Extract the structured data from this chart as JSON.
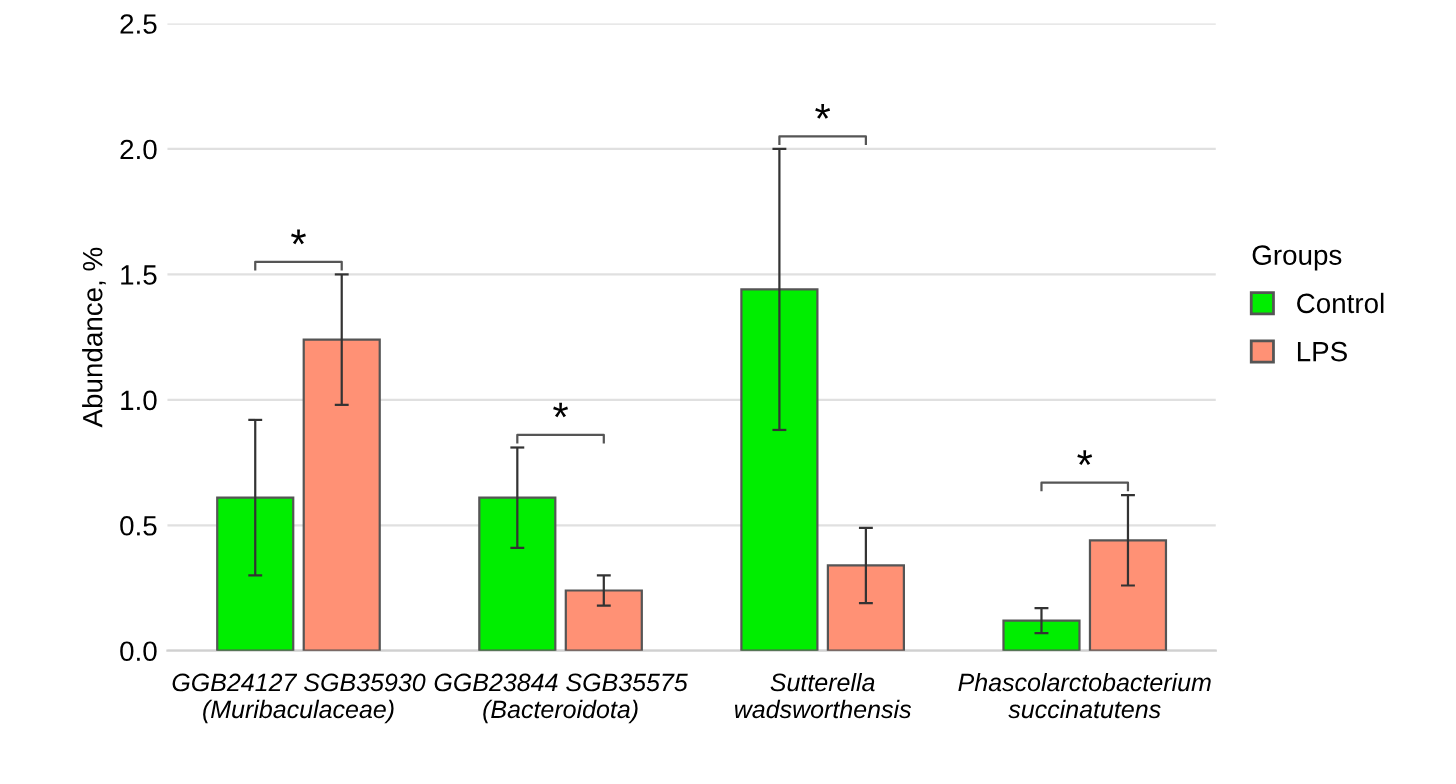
{
  "chart_data": {
    "type": "bar",
    "ylabel": "Abundance, %",
    "categories": [
      "GGB24127 SGB35930\n(Muribaculaceae)",
      "GGB23844 SGB35575\n(Bacteroidota)",
      "Sutterella\nwadsworthensis",
      "Phascolarctobacterium\nsuccinatutens"
    ],
    "series": [
      {
        "name": "Control",
        "color": "#00ee00",
        "values": [
          0.61,
          0.61,
          1.44,
          0.12
        ],
        "errors": [
          0.31,
          0.2,
          0.56,
          0.05
        ]
      },
      {
        "name": "LPS",
        "color": "#ff9175",
        "values": [
          1.24,
          0.24,
          0.34,
          0.44
        ],
        "errors": [
          0.26,
          0.06,
          0.15,
          0.18
        ]
      }
    ],
    "legend_title": "Groups",
    "legend": "right",
    "ylim": [
      0,
      2.5
    ],
    "yticks": [
      {
        "value": 0,
        "label": "0.0"
      },
      {
        "value": 0.5,
        "label": "0.5"
      },
      {
        "value": 1.0,
        "label": "1.0"
      },
      {
        "value": 1.5,
        "label": "1.5"
      },
      {
        "value": 2.0,
        "label": "2.0"
      },
      {
        "value": 2.5,
        "label": "2.5"
      }
    ],
    "grid": "y",
    "annotations": [
      "*",
      "*",
      "*",
      "*"
    ]
  }
}
